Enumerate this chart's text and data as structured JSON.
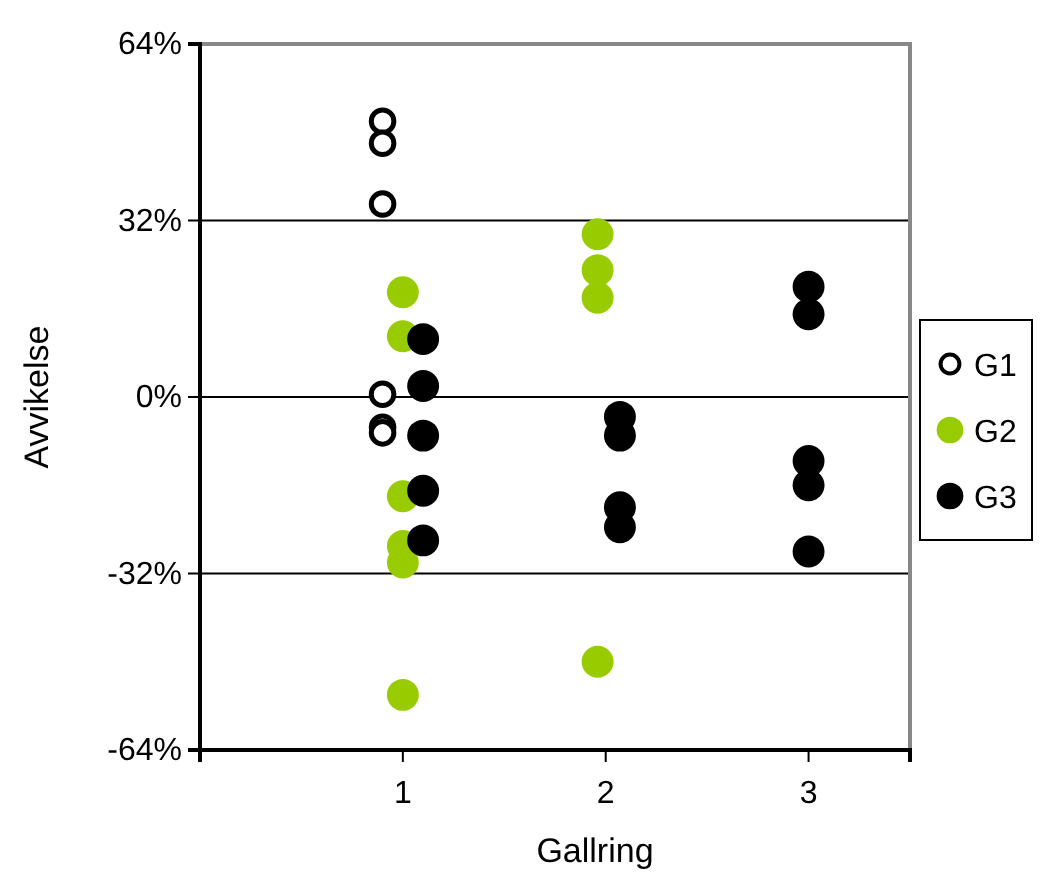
{
  "chart_data": {
    "type": "scatter",
    "xlabel": "Gallring",
    "ylabel": "Avvikelse",
    "xlim": [
      0,
      3.5
    ],
    "xticks": [
      1,
      2,
      3
    ],
    "ylim": [
      -64,
      64
    ],
    "yticks": [
      {
        "value": -64,
        "label": "-64%"
      },
      {
        "value": -32,
        "label": "-32%"
      },
      {
        "value": 0,
        "label": "0%"
      },
      {
        "value": 32,
        "label": "32%"
      },
      {
        "value": 64,
        "label": "64%"
      }
    ],
    "grid": "y",
    "legend": "right",
    "marker": "circle",
    "series": [
      {
        "name": "G1",
        "color": "#ffffff",
        "x": [
          0.9,
          0.9,
          0.9,
          0.9,
          0.9,
          0.9
        ],
        "values": [
          50,
          46,
          35,
          0.5,
          -5.5,
          -6.5
        ]
      },
      {
        "name": "G2",
        "color": "#99cc00",
        "x": [
          1,
          1,
          1,
          1,
          1,
          1,
          1.96,
          1.96,
          1.96,
          1.96
        ],
        "values": [
          19,
          11,
          -18,
          -27,
          -30,
          -54,
          29.5,
          23,
          18,
          -48
        ]
      },
      {
        "name": "G3",
        "color": "#000000",
        "x": [
          1.1,
          1.1,
          1.1,
          1.1,
          1.1,
          2.07,
          2.07,
          2.07,
          2.07,
          3,
          3,
          3,
          3,
          3
        ],
        "values": [
          10.5,
          2,
          -7,
          -17,
          -26,
          -3.6,
          -7,
          -20,
          -23.6,
          20,
          15,
          -11.6,
          -16,
          -28
        ]
      }
    ]
  }
}
